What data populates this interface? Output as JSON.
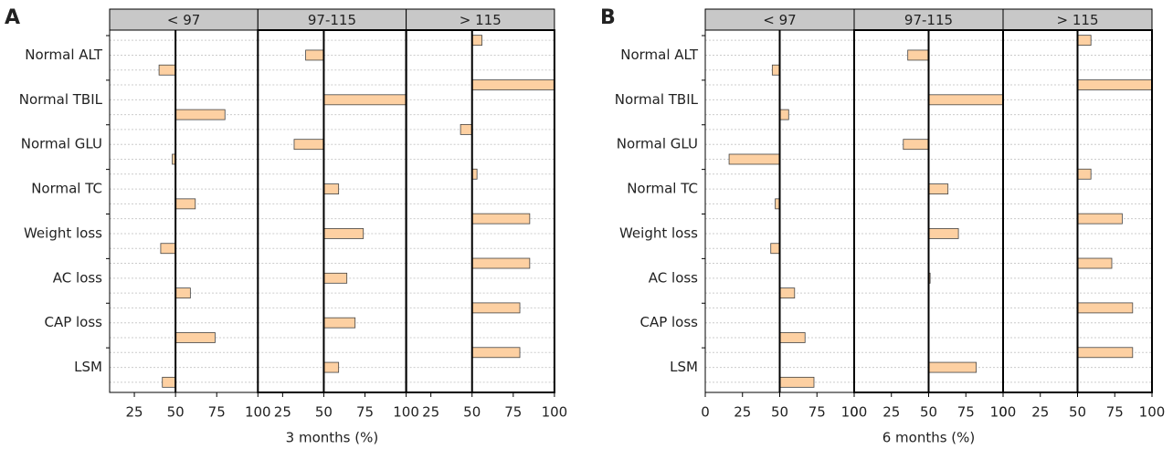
{
  "chart_data": [
    {
      "type": "bar",
      "panel_label": "A",
      "xlabel": "3 months (%)",
      "bar_base": 50,
      "color": "#fdd0a2",
      "categories": [
        "Normal ALT",
        "Normal TBIL",
        "Normal GLU",
        "Normal TC",
        "Weight loss",
        "AC loss",
        "CAP loss",
        "LSM"
      ],
      "facets": [
        {
          "label": "< 97",
          "xlim": [
            10,
            100
          ],
          "xticks": [
            25,
            50,
            75,
            100
          ],
          "values": [
            40,
            80,
            48,
            62,
            41,
            59,
            74,
            42
          ]
        },
        {
          "label": "97-115",
          "xlim": [
            10,
            100
          ],
          "xticks": [
            25,
            50,
            75,
            100
          ],
          "values": [
            39,
            100,
            32,
            59,
            74,
            64,
            69,
            59
          ]
        },
        {
          "label": "> 115",
          "xlim": [
            10,
            100
          ],
          "xticks": [
            25,
            50,
            75,
            100
          ],
          "values": [
            56,
            100,
            43,
            53,
            85,
            85,
            79,
            79
          ]
        }
      ]
    },
    {
      "type": "bar",
      "panel_label": "B",
      "xlabel": "6 months (%)",
      "bar_base": 50,
      "color": "#fdd0a2",
      "categories": [
        "Normal ALT",
        "Normal TBIL",
        "Normal GLU",
        "Normal TC",
        "Weight loss",
        "AC loss",
        "CAP loss",
        "LSM"
      ],
      "facets": [
        {
          "label": "< 97",
          "xlim": [
            0,
            100
          ],
          "xticks": [
            0,
            25,
            50,
            75,
            100
          ],
          "values": [
            45,
            56,
            16,
            47,
            44,
            60,
            67,
            73
          ]
        },
        {
          "label": "97-115",
          "xlim": [
            0,
            100
          ],
          "xticks": [
            0,
            25,
            50,
            75,
            100
          ],
          "values": [
            36,
            100,
            33,
            63,
            70,
            51,
            null,
            82
          ]
        },
        {
          "label": "> 115",
          "xlim": [
            0,
            100
          ],
          "xticks": [
            0,
            25,
            50,
            75,
            100
          ],
          "values": [
            59,
            100,
            null,
            59,
            80,
            73,
            87,
            87
          ]
        }
      ]
    }
  ]
}
